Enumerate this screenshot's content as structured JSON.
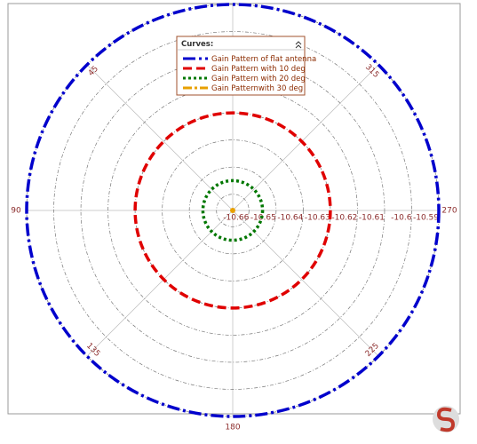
{
  "chart_data": {
    "type": "polar",
    "rlim": [
      -10.666,
      -10.59
    ],
    "rticks": [
      -10.66,
      -10.65,
      -10.64,
      -10.63,
      -10.62,
      -10.61,
      -10.6,
      -10.59
    ],
    "thetaticks": [
      45,
      90,
      135,
      180,
      225,
      270,
      315
    ],
    "legend_title": "Curves:",
    "series": [
      {
        "name": "Gain Pattern of flat antenna",
        "color": "#0000cc",
        "dash": "14 4 3 4",
        "values": [
          -10.59
        ]
      },
      {
        "name": "Gain Pattern with 10 deg",
        "color": "#e00000",
        "dash": "10 5",
        "values": [
          -10.63
        ]
      },
      {
        "name": "Gain Pattern with 20 deg",
        "color": "#007700",
        "dash": "3 3",
        "values": [
          -10.655
        ]
      },
      {
        "name": "Gain Patternwith 30 deg",
        "color": "#e8a000",
        "dash": "10 3 3 3",
        "values": [
          -10.666
        ]
      }
    ]
  }
}
